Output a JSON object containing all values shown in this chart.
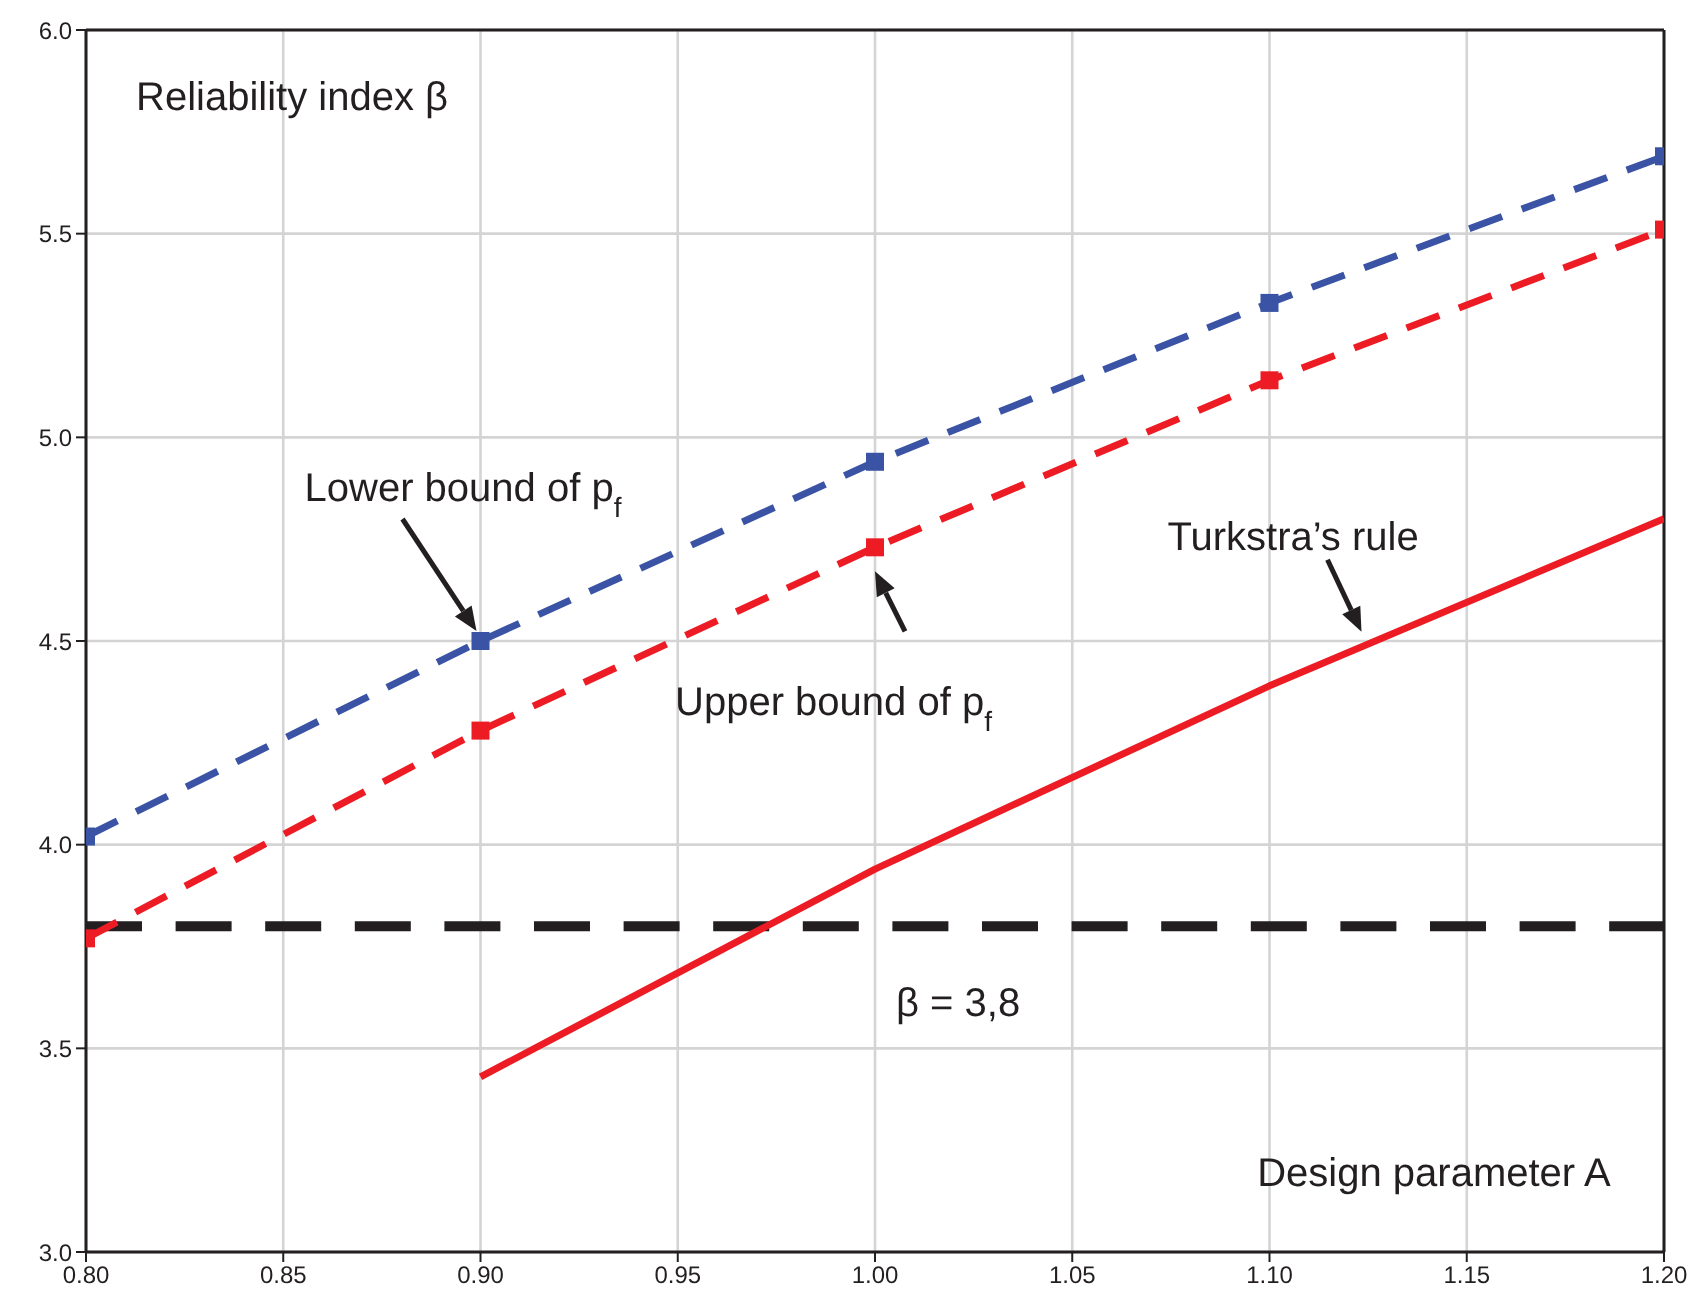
{
  "chart_data": {
    "type": "line",
    "xlabel": "Design parameter A",
    "ylabel": "Reliability index β",
    "xlim": [
      0.8,
      1.2
    ],
    "xticks": [
      {
        "value": 0.8,
        "label": "0.80"
      },
      {
        "value": 0.85,
        "label": "0.85"
      },
      {
        "value": 0.9,
        "label": "0.90"
      },
      {
        "value": 0.95,
        "label": "0.95"
      },
      {
        "value": 1.0,
        "label": "1.00"
      },
      {
        "value": 1.05,
        "label": "1.05"
      },
      {
        "value": 1.1,
        "label": "1.10"
      },
      {
        "value": 1.15,
        "label": "1.15"
      },
      {
        "value": 1.2,
        "label": "1.20"
      }
    ],
    "ylim": [
      3,
      6
    ],
    "yticks": [
      {
        "value": 3,
        "label": "3.0"
      },
      {
        "value": 3.5,
        "label": "3.5"
      },
      {
        "value": 4,
        "label": "4.0"
      },
      {
        "value": 4.5,
        "label": "4.5"
      },
      {
        "value": 5,
        "label": "5.0"
      },
      {
        "value": 5.5,
        "label": "5.5"
      },
      {
        "value": 6,
        "label": "6.0"
      }
    ],
    "grid": true,
    "series": [
      {
        "name": "Lower bound of p$_{f}$",
        "color": "#3a53a4",
        "x": [
          0.8,
          0.9,
          1.0,
          1.1,
          1.2
        ],
        "values": [
          4.02,
          4.5,
          4.94,
          5.33,
          5.69
        ],
        "marker": "square",
        "line_style": "dashed"
      },
      {
        "name": "Upper bound of p$_{f}$",
        "color": "#ed1c24",
        "x": [
          0.8,
          0.9,
          1.0,
          1.1,
          1.2
        ],
        "values": [
          3.77,
          4.28,
          4.73,
          5.14,
          5.51
        ],
        "marker": "square",
        "line_style": "dashed"
      },
      {
        "name": "Turkstra’s rule",
        "color": "#ed1c24",
        "x": [
          0.9,
          1.0,
          1.1,
          1.2
        ],
        "values": [
          3.43,
          3.94,
          4.39,
          4.8
        ],
        "marker": "none",
        "line_style": "solid"
      }
    ],
    "ref_lines": [
      {
        "axis": "y",
        "value": 3.8,
        "label": "β = 3,8",
        "color": "#231f20",
        "line_style": "dashed"
      }
    ]
  }
}
